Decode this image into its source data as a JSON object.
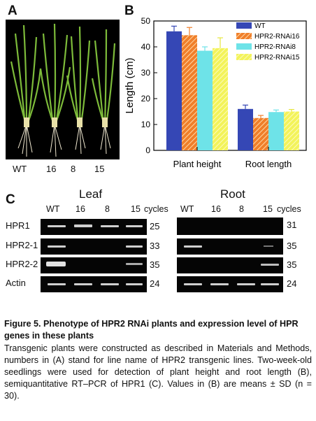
{
  "panels": {
    "a": "A",
    "b": "B",
    "c": "C"
  },
  "photo_labels": [
    "WT",
    "16",
    "8",
    "15"
  ],
  "chart_data": {
    "type": "bar",
    "categories": [
      "Plant height",
      "Root length"
    ],
    "ylabel": "Length (cm)",
    "ylim": [
      0,
      50
    ],
    "yticks": [
      0,
      10,
      20,
      30,
      40,
      50
    ],
    "legend_position": "top-right",
    "series": [
      {
        "name": "WT",
        "values": [
          46,
          16
        ],
        "errors": [
          2,
          1.5
        ],
        "color": "#3547b5"
      },
      {
        "name": "HPR2-RNAi16",
        "values": [
          44.5,
          12.5
        ],
        "errors": [
          3,
          1
        ],
        "color": "#f07f2a"
      },
      {
        "name": "HPR2-RNAi8",
        "values": [
          38.5,
          14.8
        ],
        "errors": [
          1.5,
          0.8
        ],
        "color": "#6ee3e8"
      },
      {
        "name": "HPR2-RNAi15",
        "values": [
          39.5,
          15
        ],
        "errors": [
          4,
          0.8
        ],
        "color": "#f3f35a"
      }
    ]
  },
  "gel": {
    "leaf_title": "Leaf",
    "root_title": "Root",
    "lanes": [
      "WT",
      "16",
      "8",
      "15"
    ],
    "cycles_label": "cycles",
    "rows": [
      {
        "gene": "HPR1",
        "leaf_cycles": "25",
        "root_cycles": "31"
      },
      {
        "gene": "HPR2-1",
        "leaf_cycles": "33",
        "root_cycles": "35"
      },
      {
        "gene": "HPR2-2",
        "leaf_cycles": "35",
        "root_cycles": "35"
      },
      {
        "gene": "Actin",
        "leaf_cycles": "24",
        "root_cycles": "24"
      }
    ]
  },
  "caption": {
    "title": "Figure 5.  Phenotype of HPR2 RNAi plants and expression level of HPR genes in these plants",
    "body": "Transgenic plants were constructed as described in Materials and Methods, numbers in (A) stand for line name of HPR2 transgenic lines. Two-week-old seedlings were used for detection of plant height and root length (B), semiquantitative RT–PCR of HPR1 (C). Values in (B) are means ± SD (n = 30)."
  }
}
